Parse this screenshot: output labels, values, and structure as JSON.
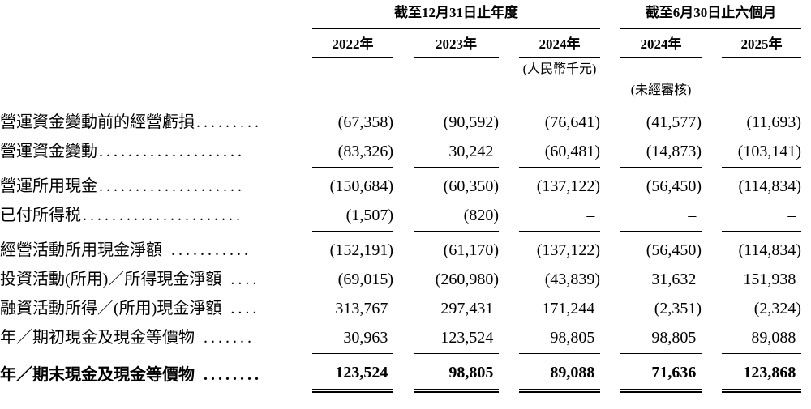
{
  "page": {
    "background": "#ffffff",
    "text_color": "#000000"
  },
  "table": {
    "group_headers": [
      {
        "label": "截至12月31日止年度"
      },
      {
        "label": "截至6月30日止六個月"
      }
    ],
    "year_headers": [
      "2022年",
      "2023年",
      "2024年",
      "2024年",
      "2025年"
    ],
    "notes": {
      "currency": "(人民幣千元)",
      "unaudited": "(未經審核)"
    },
    "rows": [
      {
        "label": "營運資金變動前的經營虧損",
        "dots": ".........",
        "values": [
          "(67,358)",
          "(90,592)",
          "(76,641)",
          "(41,577)",
          "(11,693)"
        ]
      },
      {
        "label": "營運資金變動",
        "dots": "....................",
        "values": [
          "(83,326)",
          "30,242",
          "(60,481)",
          "(14,873)",
          "(103,141)"
        ]
      },
      {
        "label": "營運所用現金",
        "dots": "....................",
        "values": [
          "(150,684)",
          "(60,350)",
          "(137,122)",
          "(56,450)",
          "(114,834)"
        ]
      },
      {
        "label": "已付所得税",
        "dots": "......................",
        "values": [
          "(1,507)",
          "(820)",
          "–",
          "–",
          "–"
        ]
      },
      {
        "label": "經營活動所用現金淨額",
        "dots": " ...........",
        "values": [
          "(152,191)",
          "(61,170)",
          "(137,122)",
          "(56,450)",
          "(114,834)"
        ]
      },
      {
        "label": "投資活動(所用)／所得現金淨額",
        "dots": " ....",
        "values": [
          "(69,015)",
          "(260,980)",
          "(43,839)",
          "31,632",
          "151,938"
        ]
      },
      {
        "label": "融資活動所得／(所用)現金淨額",
        "dots": " ....",
        "values": [
          "313,767",
          "297,431",
          "171,244",
          "(2,351)",
          "(2,324)"
        ]
      },
      {
        "label": "年／期初現金及現金等價物",
        "dots": " .......",
        "values": [
          "30,963",
          "123,524",
          "98,805",
          "98,805",
          "89,088"
        ]
      },
      {
        "label": "年／期末現金及現金等價物",
        "dots": " ........",
        "values": [
          "123,524",
          "98,805",
          "89,088",
          "71,636",
          "123,868"
        ]
      }
    ]
  }
}
